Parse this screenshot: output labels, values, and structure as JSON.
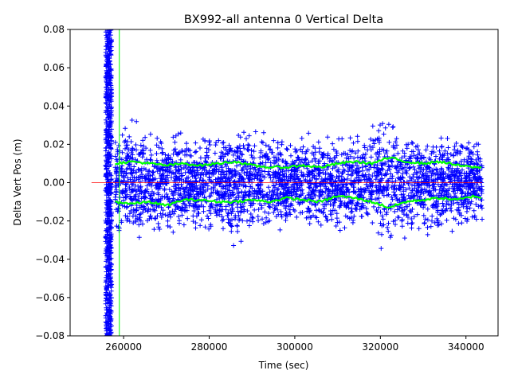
{
  "chart_data": {
    "type": "scatter",
    "title": "BX992-all antenna 0 Vertical Delta",
    "xlabel": "Time (sec)",
    "ylabel": "Delta Vert Pos (m)",
    "xlim": [
      247500,
      347500
    ],
    "ylim": [
      -0.08,
      0.08
    ],
    "xticks": [
      260000,
      280000,
      300000,
      320000,
      340000
    ],
    "xtick_labels": [
      "260000",
      "280000",
      "300000",
      "320000",
      "340000"
    ],
    "yticks": [
      -0.08,
      -0.06,
      -0.04,
      -0.02,
      0.0,
      0.02,
      0.04,
      0.06,
      0.08
    ],
    "ytick_labels": [
      "−0.08",
      "−0.06",
      "−0.04",
      "−0.02",
      "0.00",
      "0.02",
      "0.04",
      "0.06",
      "0.08"
    ],
    "grid": false,
    "colors": {
      "points": "#0000ff",
      "envelope": "#00ff00",
      "zero_line": "#ff0000",
      "vertical_marker": "#00ff00"
    },
    "series": [
      {
        "role": "measurements",
        "marker": "plus",
        "color": "#0000ff",
        "x_range": [
          255800,
          343800
        ],
        "initial_segment": {
          "x_range": [
            255800,
            257200
          ],
          "y_range": [
            -0.08,
            0.08
          ]
        },
        "main_segment": {
          "x_range": [
            258000,
            343800
          ],
          "typical_y_range": [
            -0.012,
            0.012
          ],
          "peak_y": [
            0.021,
            -0.026
          ]
        }
      },
      {
        "role": "upper-envelope",
        "color": "#00ff00",
        "x": [
          258000,
          262000,
          266000,
          270000,
          274000,
          278000,
          282000,
          286000,
          290000,
          294000,
          298000,
          302000,
          306000,
          310000,
          314000,
          318000,
          322000,
          326000,
          330000,
          334000,
          338000,
          342000,
          343800
        ],
        "y": [
          0.01,
          0.011,
          0.01,
          0.009,
          0.01,
          0.009,
          0.01,
          0.011,
          0.009,
          0.008,
          0.008,
          0.009,
          0.008,
          0.01,
          0.011,
          0.01,
          0.013,
          0.011,
          0.01,
          0.011,
          0.009,
          0.008,
          0.008
        ]
      },
      {
        "role": "lower-envelope",
        "color": "#00ff00",
        "x": [
          258000,
          262000,
          266000,
          270000,
          274000,
          278000,
          282000,
          286000,
          290000,
          294000,
          298000,
          302000,
          306000,
          310000,
          314000,
          318000,
          322000,
          326000,
          330000,
          334000,
          338000,
          342000,
          343800
        ],
        "y": [
          -0.01,
          -0.011,
          -0.01,
          -0.012,
          -0.009,
          -0.009,
          -0.01,
          -0.01,
          -0.009,
          -0.01,
          -0.008,
          -0.009,
          -0.01,
          -0.007,
          -0.008,
          -0.01,
          -0.013,
          -0.01,
          -0.009,
          -0.008,
          -0.009,
          -0.007,
          -0.008
        ]
      },
      {
        "role": "zero-line",
        "color": "#ff0000",
        "x": [
          252500,
          343800
        ],
        "y": [
          0.0,
          0.0
        ]
      },
      {
        "role": "vertical-marker",
        "color": "#00ff00",
        "x": [
          259000,
          259000
        ],
        "y": [
          -0.08,
          0.08
        ]
      }
    ]
  }
}
